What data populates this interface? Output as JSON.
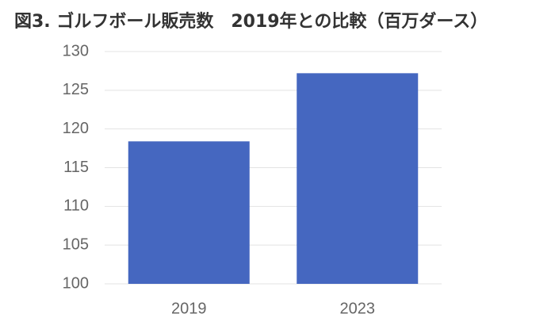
{
  "chart_data": {
    "type": "bar",
    "title": "図3. ゴルフボール販売数　2019年との比較（百万ダース）",
    "categories": [
      "2019",
      "2023"
    ],
    "values": [
      118.4,
      127.2
    ],
    "color": "#4567c0",
    "ylim": [
      100,
      130
    ],
    "yticks": [
      100,
      105,
      110,
      115,
      120,
      125,
      130
    ],
    "grid": true
  }
}
